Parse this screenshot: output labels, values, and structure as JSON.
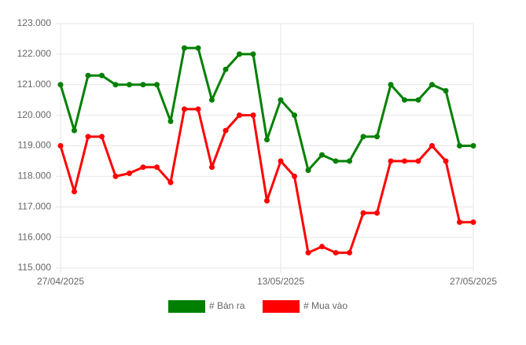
{
  "chart_data": {
    "type": "line",
    "categories": [
      "27/04/2025",
      null,
      null,
      null,
      null,
      null,
      null,
      null,
      null,
      null,
      null,
      null,
      null,
      null,
      null,
      null,
      "13/05/2025",
      null,
      null,
      null,
      null,
      null,
      null,
      null,
      null,
      null,
      null,
      null,
      null,
      null,
      "27/05/2025"
    ],
    "series": [
      {
        "name": "# Bán ra",
        "color": "#008000",
        "values": [
          121000,
          119500,
          121300,
          121300,
          121000,
          121000,
          121000,
          121000,
          119800,
          122200,
          122200,
          120500,
          121500,
          122000,
          122000,
          119200,
          120500,
          120000,
          118200,
          118700,
          118500,
          118500,
          119300,
          119300,
          121000,
          120500,
          120500,
          121000,
          120800,
          119000,
          119000
        ]
      },
      {
        "name": "# Mua vào",
        "color": "#ff0000",
        "values": [
          119000,
          117500,
          119300,
          119300,
          118000,
          118100,
          118300,
          118300,
          117800,
          120200,
          120200,
          118300,
          119500,
          120000,
          120000,
          117200,
          118500,
          118000,
          115500,
          115700,
          115500,
          115500,
          116800,
          116800,
          118500,
          118500,
          118500,
          119000,
          118500,
          116500,
          116500
        ]
      }
    ],
    "ylim": [
      115000,
      123000
    ],
    "yticks": [
      {
        "value": 115000,
        "label": "115.000"
      },
      {
        "value": 116000,
        "label": "116.000"
      },
      {
        "value": 117000,
        "label": "117.000"
      },
      {
        "value": 118000,
        "label": "118.000"
      },
      {
        "value": 119000,
        "label": "119.000"
      },
      {
        "value": 120000,
        "label": "120.000"
      },
      {
        "value": 121000,
        "label": "121.000"
      },
      {
        "value": 122000,
        "label": "122.000"
      },
      {
        "value": 123000,
        "label": "123.000"
      }
    ],
    "grid": true,
    "legend": "bottom"
  }
}
